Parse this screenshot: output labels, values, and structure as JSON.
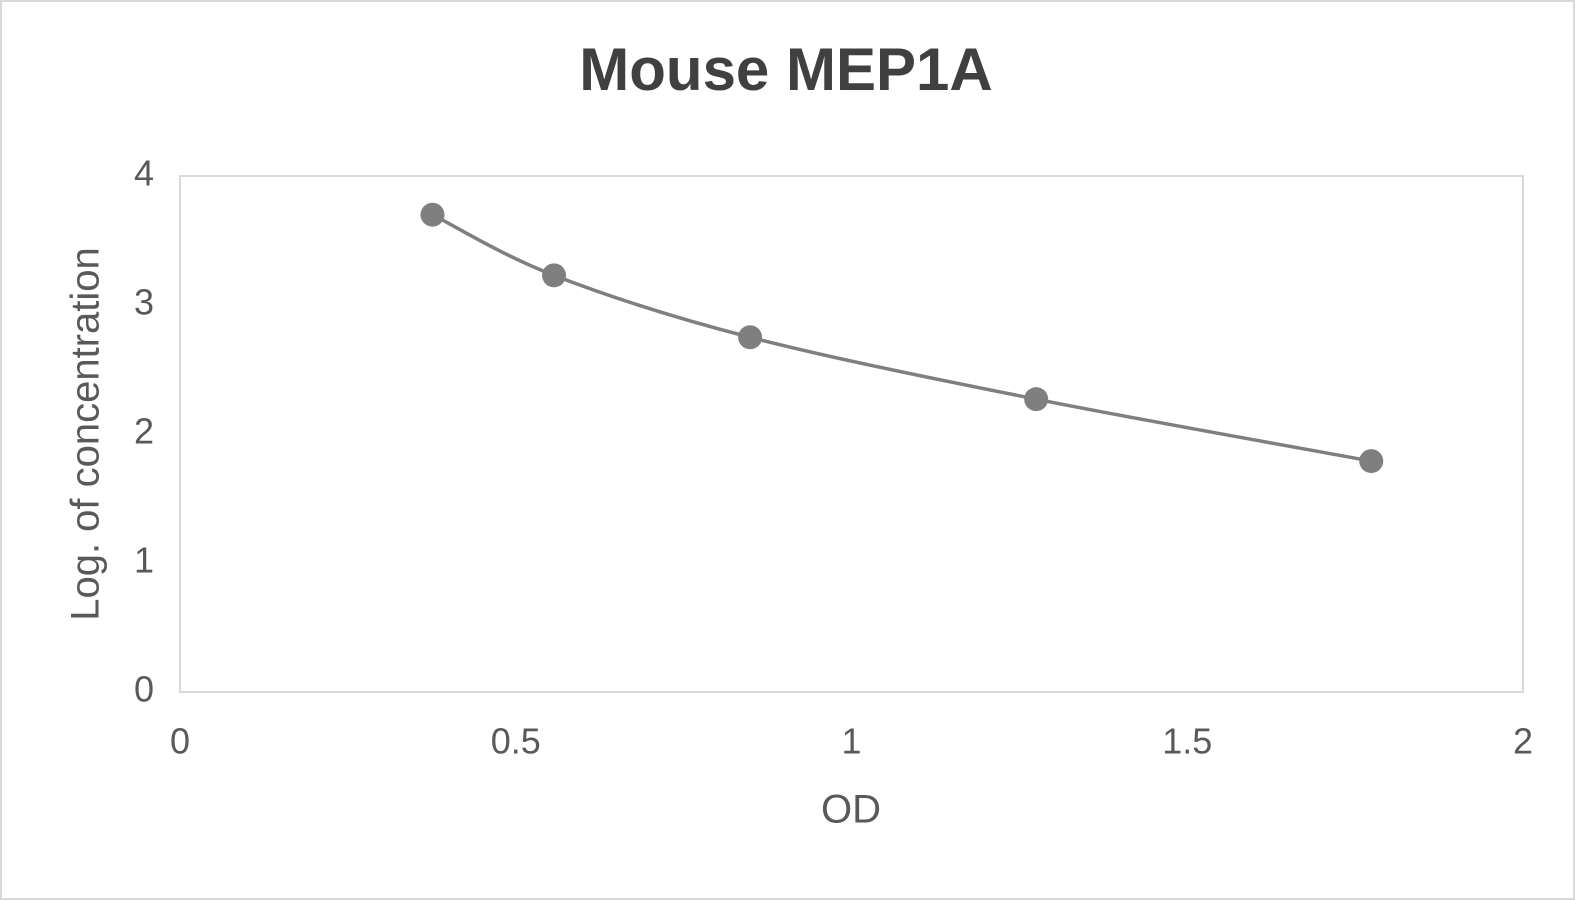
{
  "chart_data": {
    "type": "line",
    "title": "Mouse MEP1A",
    "x_label": "OD",
    "y_label": "Log. of concentration",
    "x": [
      0.376,
      0.557,
      0.849,
      1.275,
      1.774
    ],
    "values": [
      3.7,
      3.23,
      2.75,
      2.27,
      1.79
    ],
    "color": "#7f7f7f",
    "smooth": true,
    "markers": true,
    "xlim": [
      0,
      2
    ],
    "xticks": [
      0,
      0.5,
      1,
      1.5,
      2
    ],
    "ylim": [
      0,
      4
    ],
    "yticks": [
      0,
      1,
      2,
      3,
      4
    ],
    "grid": false
  }
}
